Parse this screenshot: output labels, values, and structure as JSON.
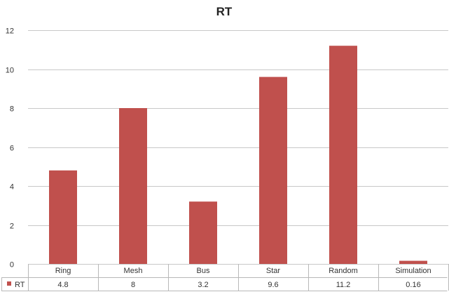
{
  "chart_data": {
    "type": "bar",
    "title": "RT",
    "categories": [
      "Ring",
      "Mesh",
      "Bus",
      "Star",
      "Random",
      "Simulation"
    ],
    "series": [
      {
        "name": "RT",
        "values": [
          4.8,
          8,
          3.2,
          9.6,
          11.2,
          0.16
        ],
        "value_labels": [
          "4.8",
          "8",
          "3.2",
          "9.6",
          "11.2",
          "0.16"
        ],
        "color": "#c0504d"
      }
    ],
    "ylim": [
      0,
      12
    ],
    "yticks": [
      0,
      2,
      4,
      6,
      8,
      10,
      12
    ],
    "grid": true,
    "legend": "data-table"
  }
}
